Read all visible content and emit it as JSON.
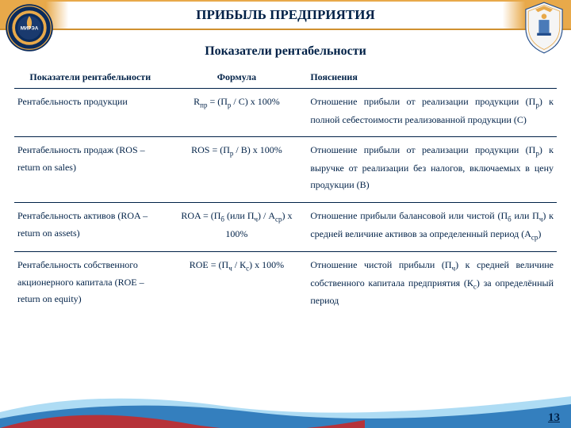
{
  "header": {
    "title": "ПРИБЫЛЬ ПРЕДПРИЯТИЯ"
  },
  "subtitle": "Показатели рентабельности",
  "table": {
    "head": {
      "c1": "Показатели рентабельности",
      "c2": "Формула",
      "c3": "Пояснения"
    },
    "rows": [
      {
        "name": "Рентабельность продукции",
        "formula": "R<sub>пр</sub> = (П<sub>р</sub> / С) x 100%",
        "explain": "Отношение прибыли от реализации продукции (П<sub>р</sub>) к полной себестоимости реализованной продукции (С)"
      },
      {
        "name": "Рентабельность продаж (ROS – return on sales)",
        "formula": "ROS = (П<sub>р</sub> / В) x 100%",
        "explain": "Отношение прибыли от реализации продукции (П<sub>р</sub>) к выручке от реализации без налогов, включаемых в цену продукции (В)"
      },
      {
        "name": "Рентабельность активов (ROA – return on assets)",
        "formula": "ROA = (П<sub>б</sub> (или П<sub>ч</sub>) / А<sub>ср</sub>) x 100%",
        "explain": "Отношение прибыли балансовой или чистой (П<sub>б</sub> или П<sub>ч</sub>) к средней величине активов за определенный период (А<sub>ср</sub>)"
      },
      {
        "name": "Рентабельность собственного акционерного капитала (ROE – return on equity)",
        "formula": "ROE = (П<sub>ч</sub> / К<sub>с</sub>) x 100%",
        "explain": "Отношение чистой прибыли (П<sub>ч</sub>) к средней величине собственного капитала предприятия (К<sub>с</sub>) за определённый период"
      }
    ]
  },
  "pageNumber": "13",
  "colors": {
    "navy": "#002147",
    "gold": "#e8a94a",
    "wave1": "#a5d8f3",
    "wave2": "#1e6fb4",
    "wave3": "#c42a2a"
  }
}
